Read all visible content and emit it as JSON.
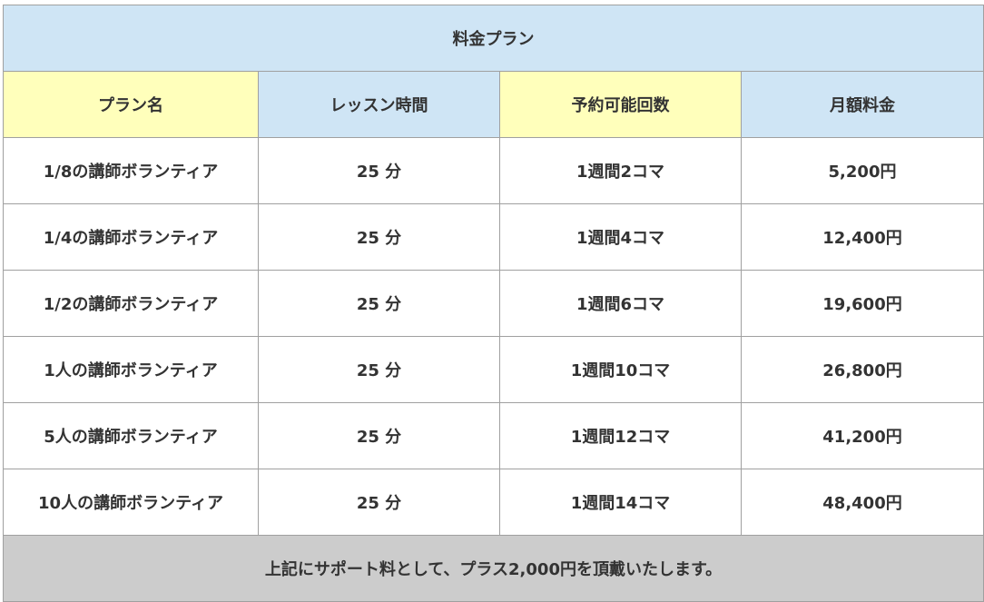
{
  "title": "料金プラン",
  "headers": [
    "プラン名",
    "レッスン時間",
    "予約可能回数",
    "月額料金"
  ],
  "rows": [
    [
      "1/8の講師ボランティア",
      "25 分",
      "1週間2コマ",
      "5,200円"
    ],
    [
      "1/4の講師ボランティア",
      "25 分",
      "1週間4コマ",
      "12,400円"
    ],
    [
      "1/2の講師ボランティア",
      "25 分",
      "1週間6コマ",
      "19,600円"
    ],
    [
      "1人の講師ボランティア",
      "25 分",
      "1週間10コマ",
      "26,800円"
    ],
    [
      "5人の講師ボランティア",
      "25 分",
      "1週間12コマ",
      "41,200円"
    ],
    [
      "10人の講師ボランティア",
      "25 分",
      "1週間14コマ",
      "48,400円"
    ]
  ],
  "footer": "上記にサポート料として、プラス2,000円を頂戴いたします。",
  "colors": {
    "header_blue": "#cfe5f5",
    "header_yellow": "#ffffbb",
    "footer_gray": "#cccccc"
  }
}
